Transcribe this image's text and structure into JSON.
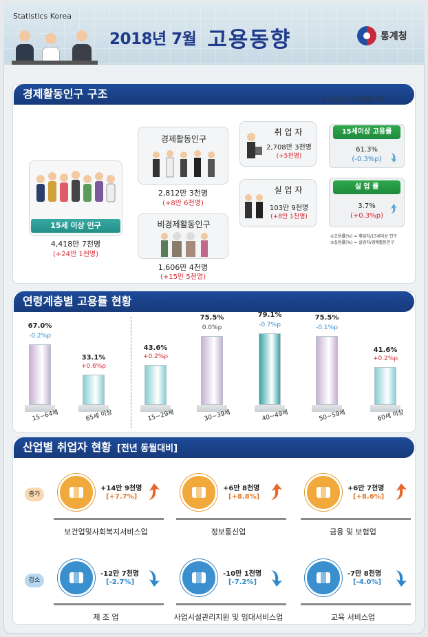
{
  "header": {
    "brand": "Statistics Korea",
    "month": "2018년 7월",
    "title": "고용동향",
    "logo": "통계청"
  },
  "sections": {
    "s1": "경제활동인구 구조",
    "s2": "연령계층별 고용률 현황",
    "s3": "산업별 취업자 현황",
    "s3_sub": "[전년 동월대비]"
  },
  "s1_note": "※ ( )수치는 전년동월대비 증감",
  "structure": {
    "pop15": {
      "label": "15세 이상 인구",
      "value": "4,418만 7천명",
      "change": "(+24만 1천명)"
    },
    "active": {
      "label": "경제활동인구",
      "value": "2,812만 3천명",
      "change": "(+8만 6천명)"
    },
    "inactive": {
      "label": "비경제활동인구",
      "value": "1,606만 4천명",
      "change": "(+15만 5천명)"
    },
    "employed": {
      "label": "취 업 자",
      "value": "2,708만 3천명",
      "change": "(+5천명)"
    },
    "unemployed": {
      "label": "실 업 자",
      "value": "103만 9천명",
      "change": "(+8만 1천명)"
    },
    "emp_rate": {
      "label": "15세이상 고용률",
      "value": "61.3%",
      "change": "(-0.3%p)"
    },
    "unemp_rate": {
      "label": "실 업 률",
      "value": "3.7%",
      "change": "(+0.3%p)"
    },
    "legend1": "①고용률(%) = 취업자/15세이상 인구",
    "legend2": "②실업률(%) = 실업자/경제활동인구"
  },
  "chart_data": {
    "type": "bar",
    "categories": [
      "15~64세",
      "65세 이상",
      "15~29세",
      "30~39세",
      "40~49세",
      "50~59세",
      "60세 이상"
    ],
    "values": [
      67.0,
      33.1,
      43.6,
      75.5,
      79.1,
      75.5,
      41.6
    ],
    "value_labels": [
      "67.0%",
      "33.1%",
      "43.6%",
      "75.5%",
      "79.1%",
      "75.5%",
      "41.6%"
    ],
    "changes": [
      "-0.2%p",
      "+0.6%p",
      "+0.2%p",
      "0.0%p",
      "-0.7%p",
      "-0.1%p",
      "+0.2%p"
    ],
    "change_colors": [
      "#2e88c9",
      "#d32630",
      "#d32630",
      "#444444",
      "#2e88c9",
      "#2e88c9",
      "#d32630"
    ],
    "bar_colors": [
      "#c7b1d3",
      "#86cfd4",
      "#86cfd4",
      "#c7b1d3",
      "#3aa5a8",
      "#c7b1d3",
      "#86cfd4"
    ],
    "title": "",
    "xlabel": "",
    "ylabel": "",
    "ylim": [
      0,
      100
    ]
  },
  "industries": {
    "inc_tag": "증가",
    "dec_tag": "감소",
    "items": [
      {
        "name": "보건업및사회복지서비스업",
        "value": "+14만 9천명",
        "pct": "[+7.7%]",
        "dir": "up",
        "icon": "healthcare-icon"
      },
      {
        "name": "정보통신업",
        "value": "+6만 8천명",
        "pct": "[+8.8%]",
        "dir": "up",
        "icon": "mouse-icon"
      },
      {
        "name": "금융 및 보험업",
        "value": "+6만 7천명",
        "pct": "[+8.6%]",
        "dir": "up",
        "icon": "money-icon"
      },
      {
        "name": "제 조 업",
        "value": "-12만 7천명",
        "pct": "[-2.7%]",
        "dir": "down",
        "icon": "gear-people-icon"
      },
      {
        "name": "사업시설관리지원 및 임대서비스업",
        "value": "-10만 1천명",
        "pct": "[-7.2%]",
        "dir": "down",
        "icon": "tools-people-icon"
      },
      {
        "name": "교육 서비스업",
        "value": "-7만 8천명",
        "pct": "[-4.0%]",
        "dir": "down",
        "icon": "clipboard-icon"
      }
    ]
  }
}
